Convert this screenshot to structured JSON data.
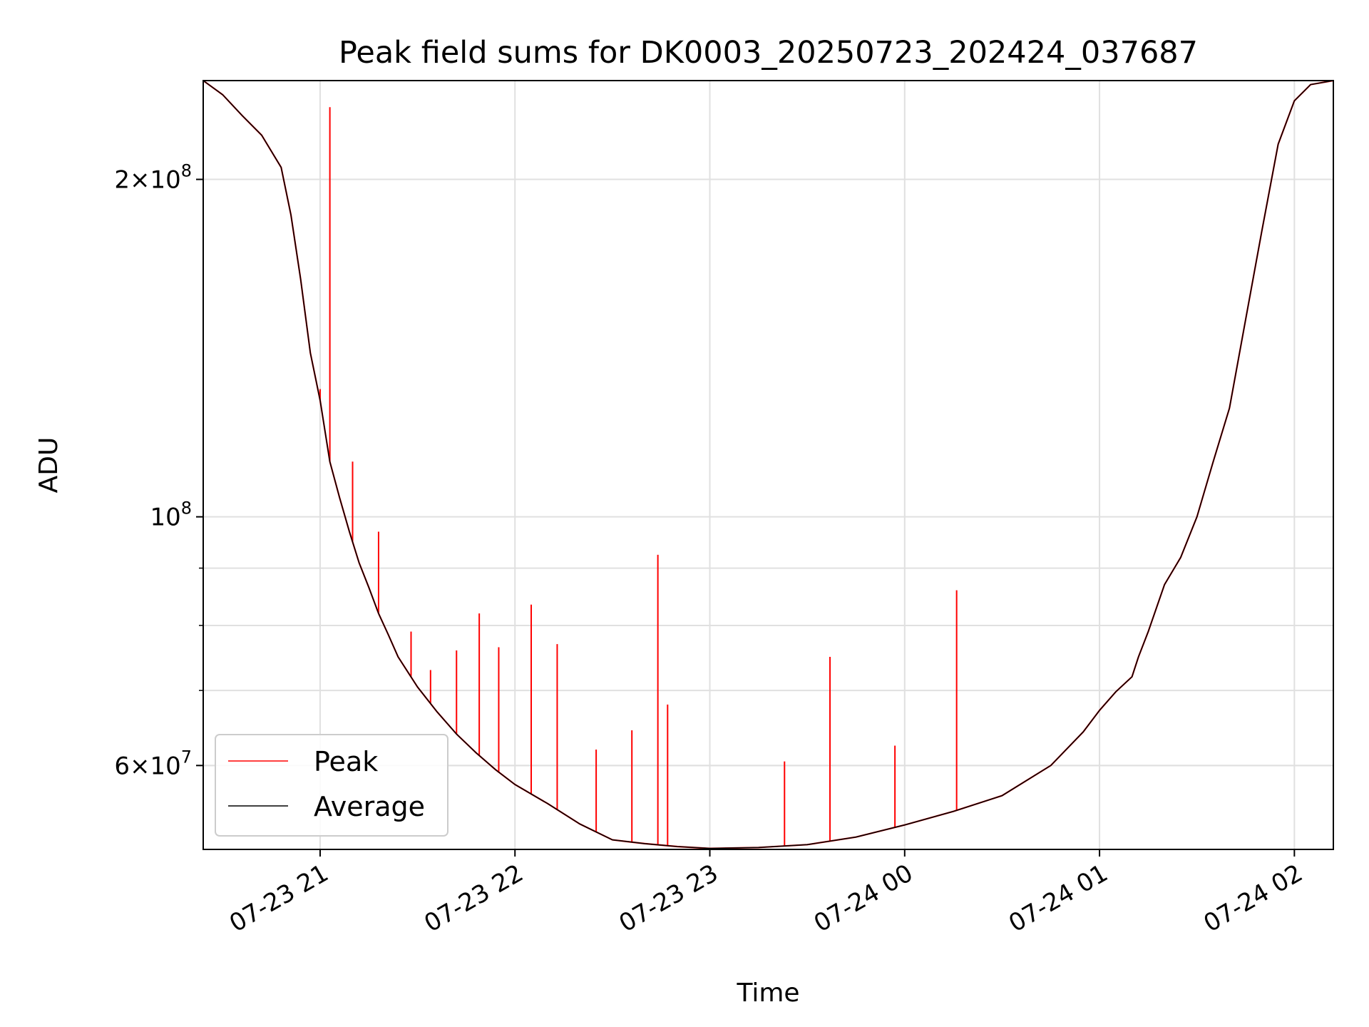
{
  "chart_data": {
    "type": "line",
    "title": "Peak field sums for DK0003_20250723_202424_037687",
    "xlabel": "Time",
    "ylabel": "ADU",
    "yscale": "log",
    "xlim": [
      "2025-07-23T20:24",
      "2025-07-24T02:12"
    ],
    "ylim": [
      50500000,
      245000000
    ],
    "grid": true,
    "legend": "lower-left",
    "x_ticks": [
      {
        "value": "2025-07-23T21:00",
        "label": "07-23 21"
      },
      {
        "value": "2025-07-23T22:00",
        "label": "07-23 22"
      },
      {
        "value": "2025-07-23T23:00",
        "label": "07-23 23"
      },
      {
        "value": "2025-07-24T00:00",
        "label": "07-24 00"
      },
      {
        "value": "2025-07-24T01:00",
        "label": "07-24 01"
      },
      {
        "value": "2025-07-24T02:00",
        "label": "07-24 02"
      }
    ],
    "y_major_ticks": [
      {
        "value": 60000000,
        "mantissa": "6",
        "exponent": "7"
      },
      {
        "value": 100000000,
        "mantissa": "",
        "exponent": "8"
      },
      {
        "value": 200000000,
        "mantissa": "2",
        "exponent": "8"
      }
    ],
    "y_minor_ticks": [
      60000000,
      70000000,
      80000000,
      90000000,
      200000000
    ],
    "series": [
      {
        "name": "Average",
        "color": "#000000",
        "x": [
          "2025-07-23T20:24",
          "2025-07-23T20:30",
          "2025-07-23T20:36",
          "2025-07-23T20:42",
          "2025-07-23T20:48",
          "2025-07-23T20:51",
          "2025-07-23T20:54",
          "2025-07-23T20:57",
          "2025-07-23T21:00",
          "2025-07-23T21:03",
          "2025-07-23T21:06",
          "2025-07-23T21:09",
          "2025-07-23T21:12",
          "2025-07-23T21:15",
          "2025-07-23T21:18",
          "2025-07-23T21:21",
          "2025-07-23T21:24",
          "2025-07-23T21:30",
          "2025-07-23T21:36",
          "2025-07-23T21:42",
          "2025-07-23T21:48",
          "2025-07-23T21:54",
          "2025-07-23T22:00",
          "2025-07-23T22:10",
          "2025-07-23T22:20",
          "2025-07-23T22:30",
          "2025-07-23T22:40",
          "2025-07-23T22:50",
          "2025-07-23T23:00",
          "2025-07-23T23:15",
          "2025-07-23T23:30",
          "2025-07-23T23:45",
          "2025-07-24T00:00",
          "2025-07-24T00:15",
          "2025-07-24T00:30",
          "2025-07-24T00:45",
          "2025-07-24T00:55",
          "2025-07-24T01:00",
          "2025-07-24T01:05",
          "2025-07-24T01:10",
          "2025-07-24T01:12",
          "2025-07-24T01:15",
          "2025-07-24T01:20",
          "2025-07-24T01:25",
          "2025-07-24T01:30",
          "2025-07-24T01:35",
          "2025-07-24T01:40",
          "2025-07-24T01:45",
          "2025-07-24T01:50",
          "2025-07-24T01:55",
          "2025-07-24T02:00",
          "2025-07-24T02:05",
          "2025-07-24T02:12"
        ],
        "values": [
          245000000,
          238000000,
          228000000,
          219000000,
          205000000,
          186000000,
          163000000,
          140000000,
          127000000,
          112000000,
          104000000,
          97000000,
          91000000,
          86500000,
          82000000,
          78500000,
          75000000,
          70500000,
          67000000,
          64000000,
          61600000,
          59500000,
          57700000,
          55500000,
          53200000,
          51500000,
          51100000,
          50800000,
          50600000,
          50700000,
          51000000,
          51800000,
          53100000,
          54600000,
          56400000,
          60000000,
          64300000,
          67200000,
          69800000,
          72000000,
          75000000,
          79000000,
          87000000,
          92000000,
          100000000,
          112000000,
          125000000,
          150000000,
          180000000,
          215000000,
          235000000,
          243000000,
          245000000
        ]
      },
      {
        "name": "Peak",
        "color": "#ff0000",
        "spikes": [
          {
            "x": "2025-07-23T21:03",
            "value": 232000000
          },
          {
            "x": "2025-07-23T21:00",
            "value": 130000000
          },
          {
            "x": "2025-07-23T21:10",
            "value": 112000000
          },
          {
            "x": "2025-07-23T21:18",
            "value": 97000000
          },
          {
            "x": "2025-07-23T21:28",
            "value": 79000000
          },
          {
            "x": "2025-07-23T21:34",
            "value": 73000000
          },
          {
            "x": "2025-07-23T21:42",
            "value": 76000000
          },
          {
            "x": "2025-07-23T21:49",
            "value": 82000000
          },
          {
            "x": "2025-07-23T21:55",
            "value": 76500000
          },
          {
            "x": "2025-07-23T22:05",
            "value": 83500000
          },
          {
            "x": "2025-07-23T22:13",
            "value": 77000000
          },
          {
            "x": "2025-07-23T22:25",
            "value": 62000000
          },
          {
            "x": "2025-07-23T22:36",
            "value": 64500000
          },
          {
            "x": "2025-07-23T22:44",
            "value": 92500000
          },
          {
            "x": "2025-07-23T22:47",
            "value": 68000000
          },
          {
            "x": "2025-07-23T23:23",
            "value": 60500000
          },
          {
            "x": "2025-07-23T23:37",
            "value": 75000000
          },
          {
            "x": "2025-07-23T23:57",
            "value": 62500000
          },
          {
            "x": "2025-07-24T00:16",
            "value": 86000000
          }
        ]
      }
    ]
  }
}
